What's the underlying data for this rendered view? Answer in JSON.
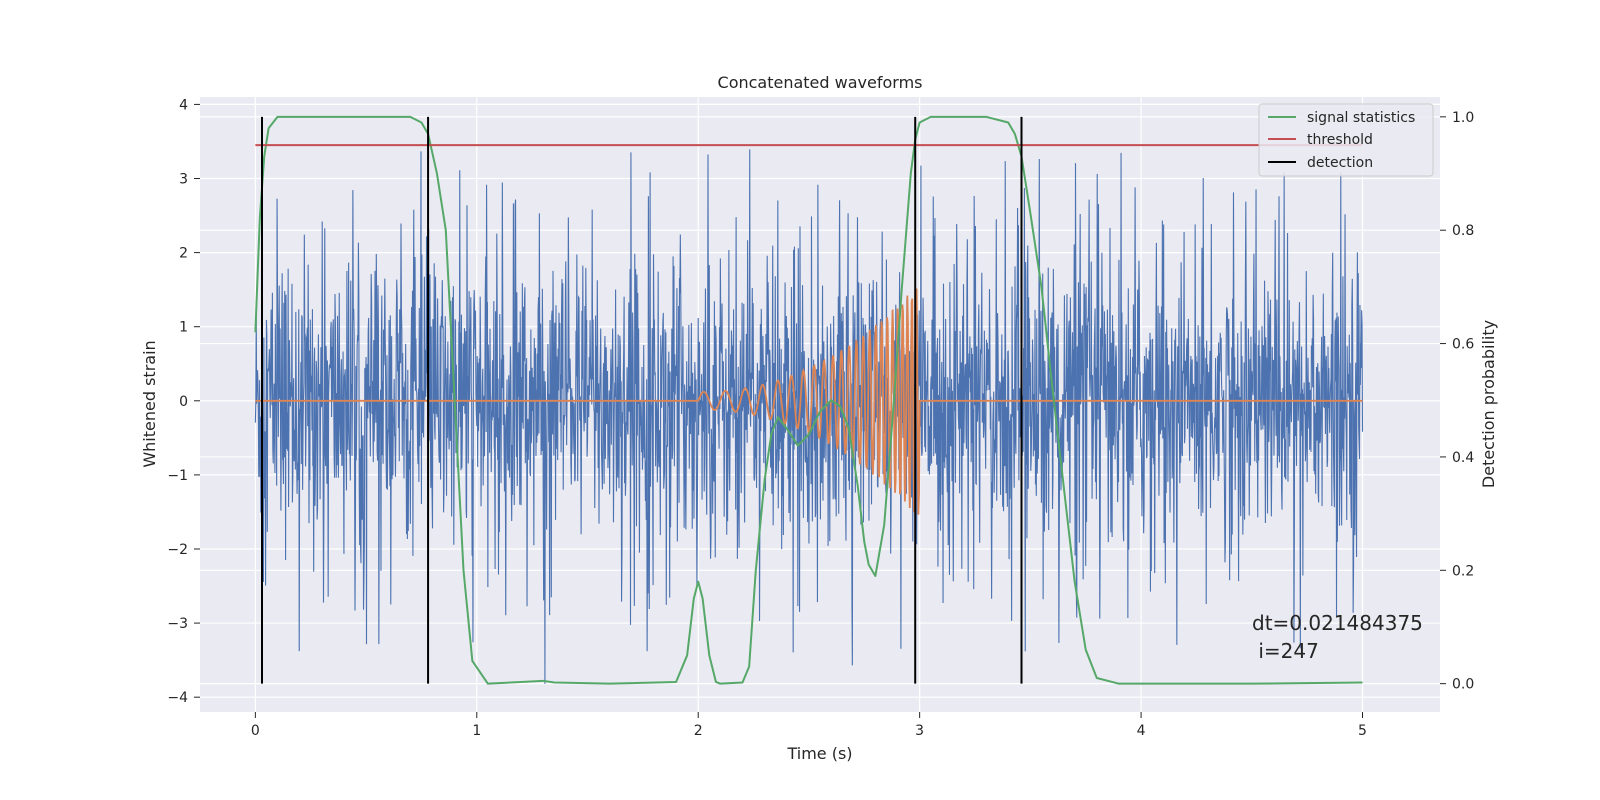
{
  "chart_data": {
    "type": "line",
    "title": "Concatenated waveforms",
    "xlabel": "Time (s)",
    "ylabel": "Whitened strain",
    "y2label": "Detection probability",
    "xlim": [
      -0.25,
      5.35
    ],
    "ylim": [
      -4.2,
      4.1
    ],
    "y2lim": [
      -0.05,
      1.035
    ],
    "xticks": [
      0,
      1,
      2,
      3,
      4,
      5
    ],
    "xtick_labels": [
      "0",
      "1",
      "2",
      "3",
      "4",
      "5"
    ],
    "yticks": [
      4,
      3,
      2,
      1,
      0,
      -1,
      -2,
      -3,
      -4
    ],
    "ytick_labels": [
      "4",
      "3",
      "2",
      "1",
      "0",
      "−1",
      "−2",
      "−3",
      "−4"
    ],
    "y2ticks": [
      1.0,
      0.8,
      0.6,
      0.4,
      0.2,
      0.0
    ],
    "y2tick_labels": [
      "1.0",
      "0.8",
      "0.6",
      "0.4",
      "0.2",
      "0.0"
    ],
    "grid": true,
    "legend_position": "top-right",
    "series": [
      {
        "name": "signal statistics",
        "axis": "right",
        "color": "#55a868",
        "x": [
          0.0,
          0.02,
          0.04,
          0.06,
          0.1,
          0.2,
          0.5,
          0.7,
          0.75,
          0.78,
          0.82,
          0.86,
          0.9,
          0.94,
          0.98,
          1.05,
          1.3,
          1.35,
          1.6,
          1.9,
          1.95,
          1.98,
          2.0,
          2.02,
          2.05,
          2.08,
          2.1,
          2.2,
          2.23,
          2.26,
          2.3,
          2.33,
          2.36,
          2.4,
          2.45,
          2.5,
          2.55,
          2.6,
          2.64,
          2.68,
          2.72,
          2.75,
          2.77,
          2.8,
          2.84,
          2.88,
          2.92,
          2.96,
          2.98,
          3.0,
          3.05,
          3.1,
          3.3,
          3.4,
          3.43,
          3.46,
          3.5,
          3.55,
          3.6,
          3.65,
          3.7,
          3.75,
          3.8,
          3.9,
          4.5,
          5.0
        ],
        "y": [
          0.62,
          0.82,
          0.93,
          0.98,
          1.0,
          1.0,
          1.0,
          1.0,
          0.99,
          0.97,
          0.9,
          0.8,
          0.5,
          0.2,
          0.04,
          0.0,
          0.005,
          0.002,
          0.0,
          0.003,
          0.05,
          0.15,
          0.18,
          0.15,
          0.05,
          0.003,
          0.0,
          0.002,
          0.03,
          0.2,
          0.36,
          0.44,
          0.47,
          0.45,
          0.42,
          0.44,
          0.48,
          0.5,
          0.49,
          0.45,
          0.35,
          0.25,
          0.21,
          0.19,
          0.28,
          0.48,
          0.7,
          0.9,
          0.96,
          0.99,
          1.0,
          1.0,
          1.0,
          0.99,
          0.97,
          0.93,
          0.83,
          0.7,
          0.52,
          0.35,
          0.18,
          0.06,
          0.01,
          0.0,
          0.0,
          0.002
        ]
      },
      {
        "name": "threshold",
        "axis": "right",
        "color": "#c44e52",
        "x": [
          0.0,
          5.0
        ],
        "y": [
          0.95,
          0.95
        ]
      },
      {
        "name": "detection",
        "axis": "right",
        "color": "#000000",
        "style": "vertical_lines",
        "x": [
          0.03,
          0.78,
          2.98,
          3.46
        ],
        "y_range": [
          0.0,
          1.0
        ]
      }
    ],
    "noise_trace": {
      "color": "#4c72b0",
      "x_range": [
        0.0,
        5.0
      ],
      "envelope": 2.6,
      "description": "dense whitened-strain noise, roughly ±2 with spikes to about ±3.4"
    },
    "chirp_trace": {
      "color": "#dd8452",
      "x_range": [
        0.0,
        5.0
      ],
      "chirp_start": 2.0,
      "chirp_end": 3.0,
      "peak_amplitude": 1.6
    },
    "annotation": {
      "line1": "dt=0.021484375",
      "line2": " i=247"
    },
    "legend": [
      {
        "label": "signal statistics",
        "color": "#55a868"
      },
      {
        "label": "threshold",
        "color": "#c44e52"
      },
      {
        "label": "detection",
        "color": "#000000"
      }
    ]
  }
}
